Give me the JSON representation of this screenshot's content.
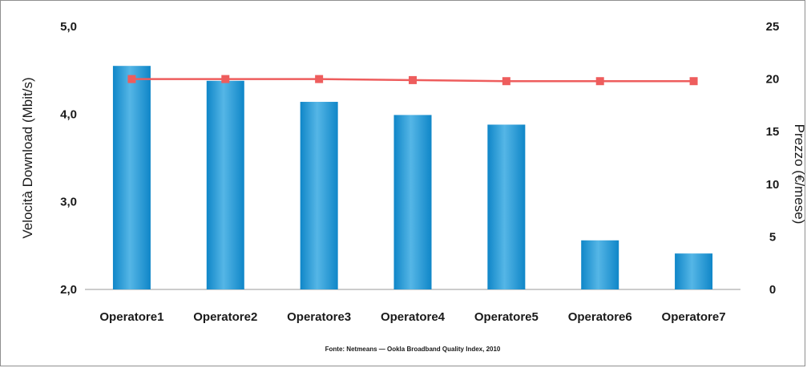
{
  "chart_data": {
    "type": "bar",
    "categories": [
      "Operatore1",
      "Operatore2",
      "Operatore3",
      "Operatore4",
      "Operatore5",
      "Operatore6",
      "Operatore7"
    ],
    "series": [
      {
        "type": "bar",
        "axis": "left",
        "values": [
          4.55,
          4.38,
          4.14,
          3.99,
          3.88,
          2.56,
          2.41
        ]
      },
      {
        "type": "line",
        "axis": "right",
        "values": [
          20,
          20,
          20,
          19.9,
          19.8,
          19.8,
          19.8
        ]
      }
    ],
    "ylabel": "Velocità Download (Mbit/s)",
    "y2label": "Prezzo (€/mese)",
    "ylim": [
      2.0,
      5.0
    ],
    "y2lim": [
      0,
      25
    ],
    "yticks": [
      "2,0",
      "3,0",
      "4,0",
      "5,0"
    ],
    "y2ticks": [
      "0",
      "5",
      "10",
      "15",
      "20",
      "25"
    ],
    "source": "Fonte: Netmeans — Ookla Broadband Quality Index, 2010",
    "grid": false,
    "legend": "none",
    "colors": {
      "bar": "#0f86c8",
      "bar_light": "#55b6e6",
      "line": "#ee5d5d"
    }
  }
}
